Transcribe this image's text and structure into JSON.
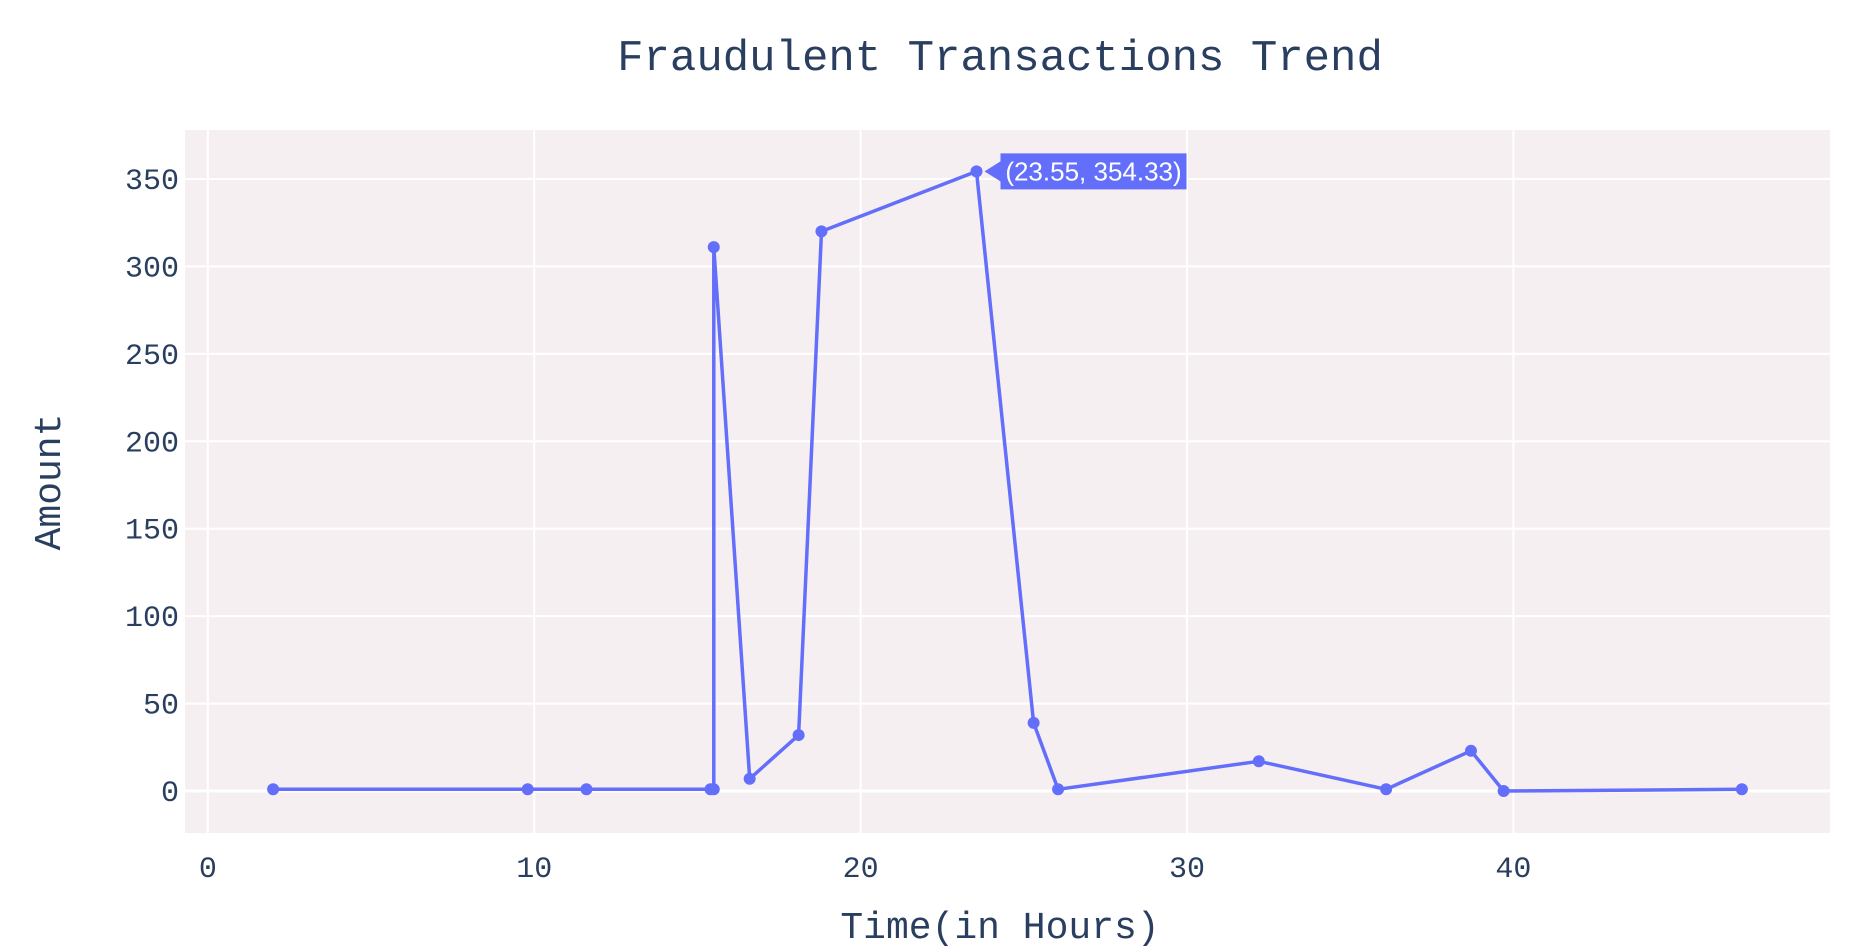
{
  "chart_data": {
    "type": "line",
    "title": "Fraudulent Transactions Trend",
    "xlabel": "Time(in Hours)",
    "ylabel": "Amount",
    "xlim": [
      -0.7,
      49.7
    ],
    "ylim": [
      -24,
      378
    ],
    "xticks": [
      0,
      10,
      20,
      30,
      40
    ],
    "yticks": [
      0,
      50,
      100,
      150,
      200,
      250,
      300,
      350
    ],
    "grid": true,
    "markers": true,
    "colors": {
      "line": "#636efa",
      "plot_bg": "#f6eff1",
      "grid": "#ffffff",
      "text": "#2a3f5f"
    },
    "series": [
      {
        "x": [
          2.0,
          9.8,
          11.6,
          15.4,
          15.5,
          15.5,
          16.6,
          18.1,
          18.8,
          23.55,
          25.3,
          26.05,
          32.2,
          36.1,
          38.7,
          39.7,
          47.0
        ],
        "y": [
          1,
          1,
          1,
          1,
          1,
          311,
          7,
          32,
          320,
          354.33,
          39,
          1,
          17,
          1,
          23,
          0,
          1
        ]
      }
    ],
    "hover_label": {
      "text": "(23.55, 354.33)",
      "point_index": 9
    }
  }
}
